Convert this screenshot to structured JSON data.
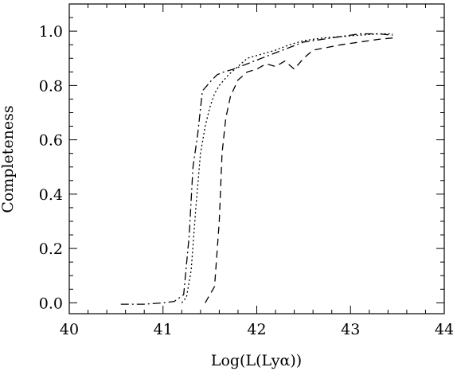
{
  "chart_data": {
    "type": "line",
    "title": "",
    "xlabel": "Log(L(Lyα))",
    "ylabel": "Completeness",
    "xlim": [
      40,
      44
    ],
    "ylim": [
      -0.04,
      1.1
    ],
    "xticks": [
      40,
      41,
      42,
      43,
      44
    ],
    "xtick_labels": [
      "40",
      "41",
      "42",
      "43",
      "44"
    ],
    "yticks": [
      0.0,
      0.2,
      0.4,
      0.6,
      0.8,
      1.0
    ],
    "ytick_labels": [
      "0.0",
      "0.2",
      "0.4",
      "0.6",
      "0.8",
      "1.0"
    ],
    "grid": false,
    "legend": "none",
    "series": [
      {
        "style": "dash-dot",
        "x": [
          40.55,
          40.8,
          41.0,
          41.12,
          41.22,
          41.28,
          41.32,
          41.37,
          41.42,
          41.47,
          41.52,
          41.58,
          41.65,
          41.75,
          41.9,
          42.05,
          42.2,
          42.35,
          42.5,
          42.7,
          42.9,
          43.1,
          43.3,
          43.45
        ],
        "y": [
          -0.005,
          -0.005,
          0.0,
          0.005,
          0.03,
          0.25,
          0.5,
          0.62,
          0.78,
          0.8,
          0.82,
          0.84,
          0.85,
          0.86,
          0.88,
          0.9,
          0.92,
          0.94,
          0.96,
          0.97,
          0.98,
          0.99,
          0.99,
          0.985
        ]
      },
      {
        "style": "dotted",
        "x": [
          41.2,
          41.25,
          41.3,
          41.35,
          41.4,
          41.45,
          41.5,
          41.55,
          41.6,
          41.7,
          41.8,
          41.9,
          42.0,
          42.1,
          42.2,
          42.35,
          42.5,
          42.7,
          42.9,
          43.1,
          43.3,
          43.45
        ],
        "y": [
          0.0,
          0.02,
          0.12,
          0.35,
          0.55,
          0.65,
          0.72,
          0.77,
          0.8,
          0.84,
          0.87,
          0.9,
          0.91,
          0.92,
          0.93,
          0.95,
          0.965,
          0.975,
          0.98,
          0.985,
          0.99,
          0.99
        ]
      },
      {
        "style": "dashed",
        "x": [
          41.45,
          41.5,
          41.55,
          41.6,
          41.63,
          41.67,
          41.72,
          41.8,
          41.9,
          42.0,
          42.1,
          42.2,
          42.3,
          42.4,
          42.5,
          42.6,
          42.75,
          42.9,
          43.1,
          43.3,
          43.45
        ],
        "y": [
          0.0,
          0.03,
          0.06,
          0.3,
          0.55,
          0.68,
          0.76,
          0.82,
          0.85,
          0.86,
          0.88,
          0.87,
          0.89,
          0.86,
          0.9,
          0.93,
          0.94,
          0.95,
          0.96,
          0.97,
          0.975
        ]
      }
    ]
  }
}
